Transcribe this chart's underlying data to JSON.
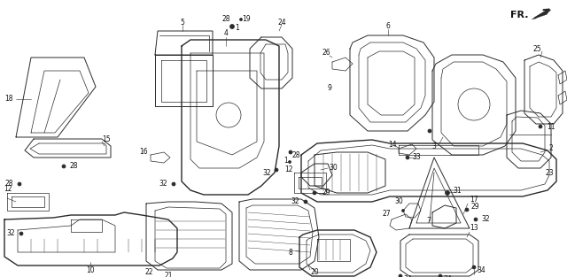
{
  "bg_color": "#ffffff",
  "line_color": "#2a2a2a",
  "label_color": "#111111",
  "fig_w": 6.4,
  "fig_h": 3.13,
  "dpi": 100
}
